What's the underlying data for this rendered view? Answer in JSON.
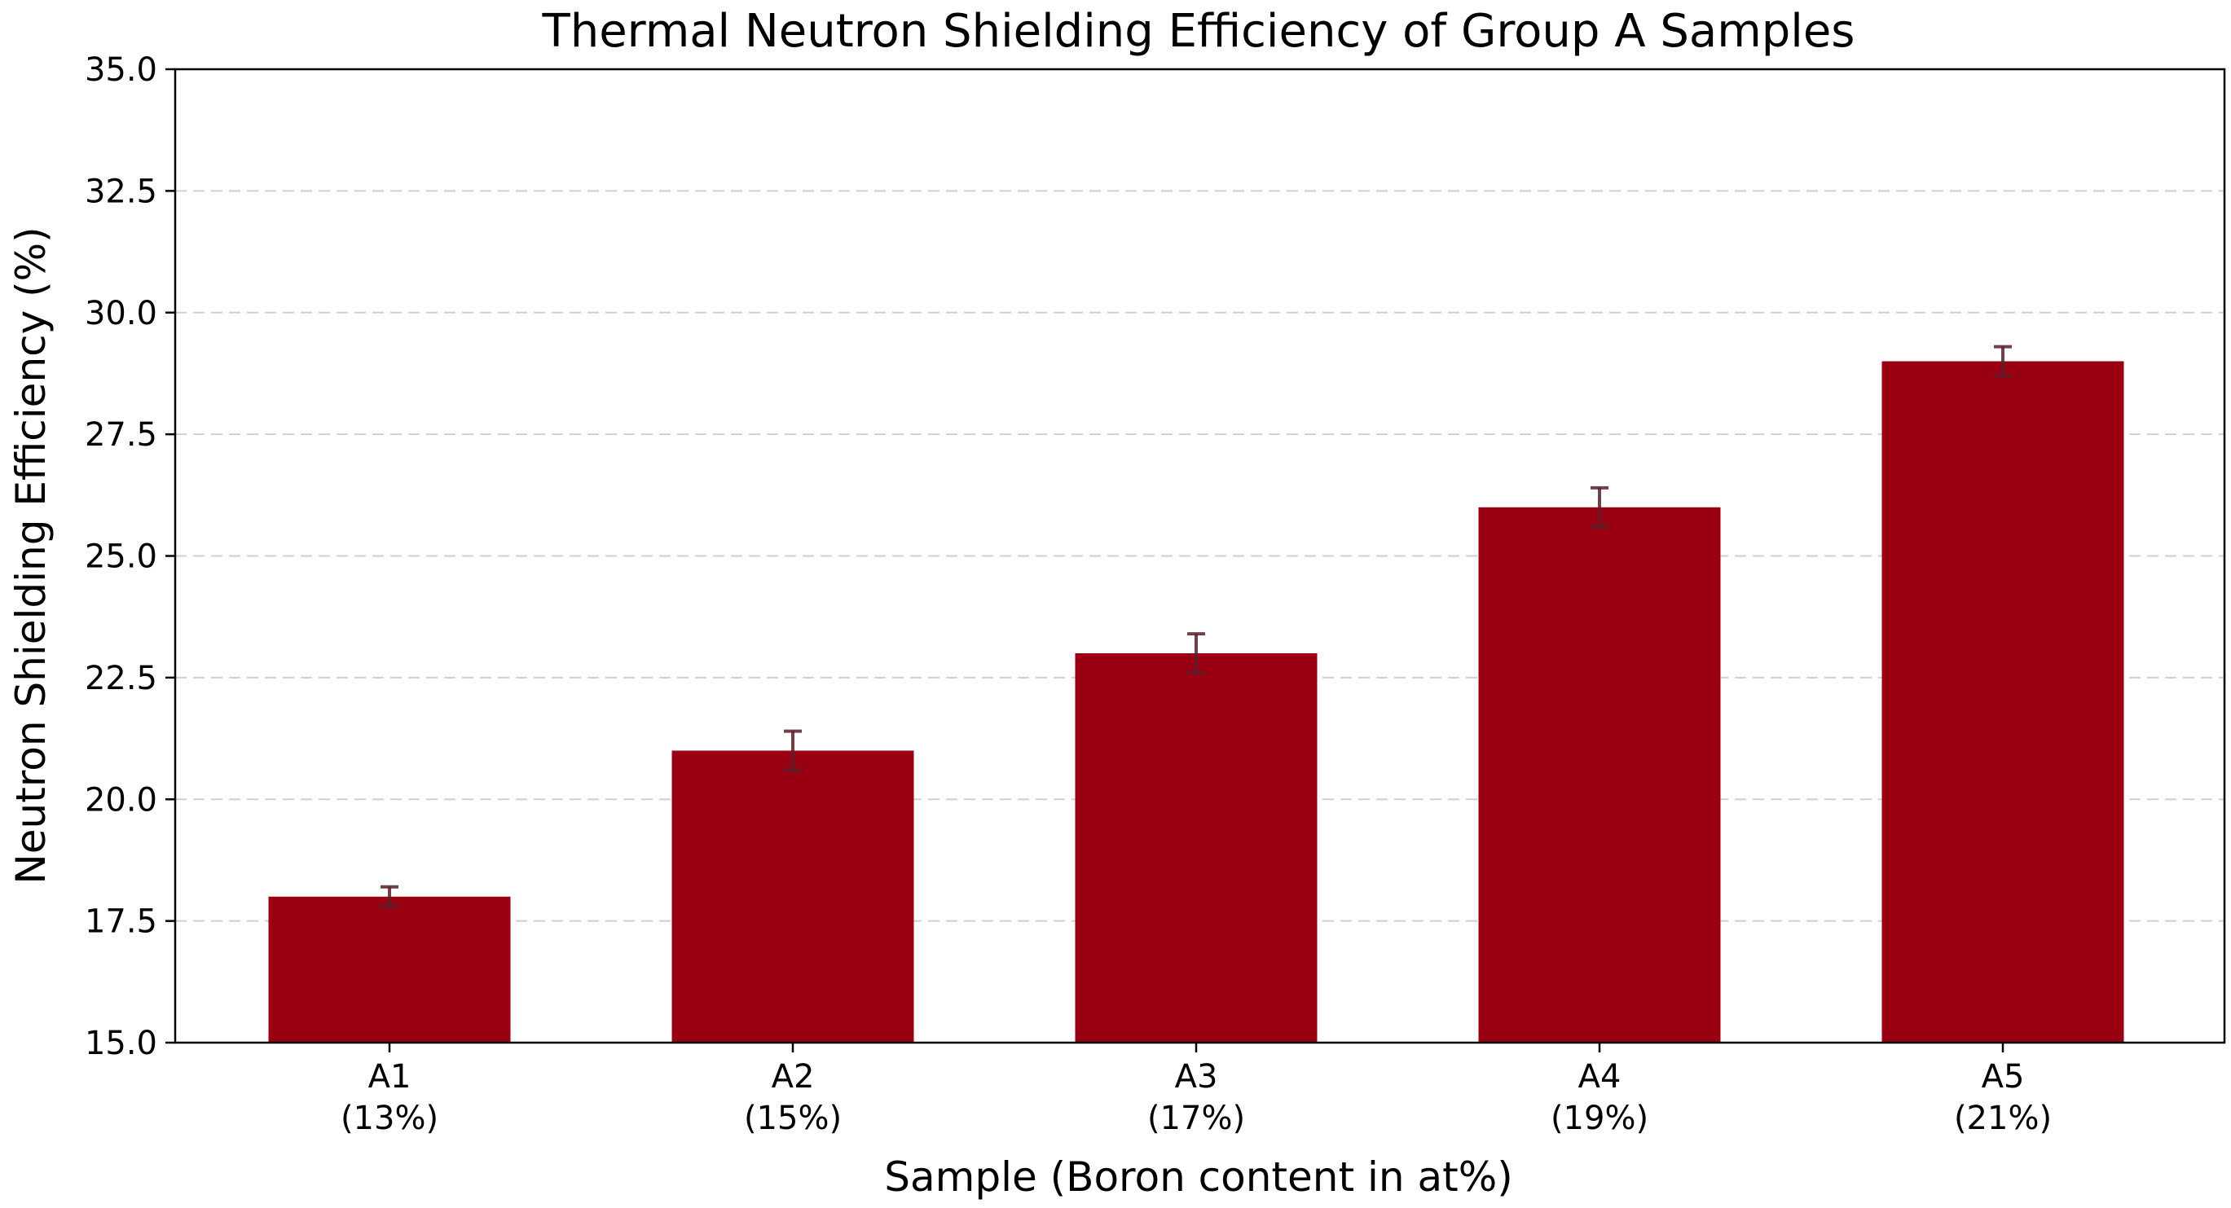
{
  "chart_data": {
    "type": "bar",
    "title": "Thermal Neutron Shielding Efficiency of Group A Samples",
    "xlabel": "Sample (Boron content in at%)",
    "ylabel": "Neutron Shielding Efficiency (%)",
    "categories": [
      "A1",
      "A2",
      "A3",
      "A4",
      "A5"
    ],
    "category_sublabels": [
      "(13%)",
      "(15%)",
      "(17%)",
      "(19%)",
      "(21%)"
    ],
    "values": [
      18.0,
      21.0,
      23.0,
      26.0,
      29.0
    ],
    "errors": [
      0.2,
      0.4,
      0.4,
      0.4,
      0.3
    ],
    "ylim": [
      15.0,
      35.0
    ],
    "yticks": [
      "15.0",
      "17.5",
      "20.0",
      "22.5",
      "25.0",
      "27.5",
      "30.0",
      "32.5",
      "35.0"
    ],
    "grid": "y-dashed",
    "colors": {
      "bar": "#990012",
      "error": "#5a1f2a"
    }
  }
}
